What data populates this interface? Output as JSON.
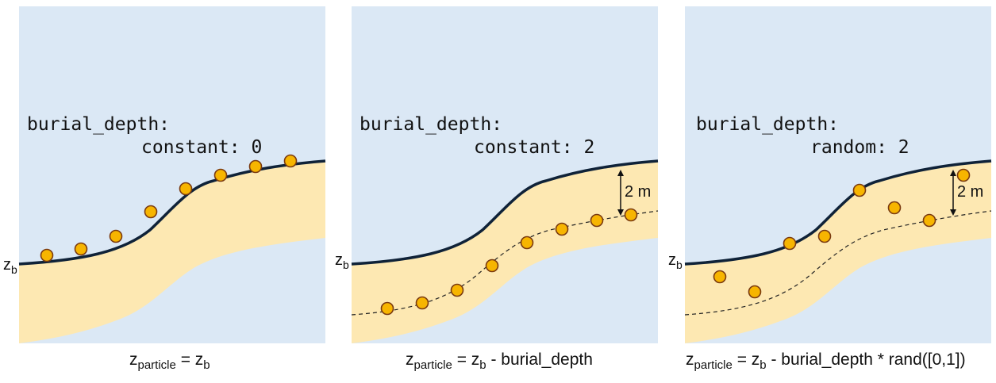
{
  "colors": {
    "water": "#dbe8f5",
    "sediment": "#fde8b2",
    "bed_line": "#0f2238",
    "particle_fill": "#f7b500",
    "particle_stroke": "#7a3a10",
    "dashed": "#222222"
  },
  "panels": [
    {
      "id": "constant-0",
      "config_line1": "burial_depth:",
      "config_line2": "constant: 0",
      "zb_main": "z",
      "zb_sub": "b",
      "show_depth_marker": false,
      "show_dashed_line": false,
      "caption": {
        "lhs_main": "z",
        "lhs_sub": "particle",
        "mid": " = ",
        "rhs_main": "z",
        "rhs_sub": "b",
        "rest": ""
      }
    },
    {
      "id": "constant-2",
      "config_line1": "burial_depth:",
      "config_line2": "constant: 2",
      "zb_main": "z",
      "zb_sub": "b",
      "show_depth_marker": true,
      "depth_label": "2 m",
      "show_dashed_line": true,
      "caption": {
        "lhs_main": "z",
        "lhs_sub": "particle",
        "mid": " = ",
        "rhs_main": "z",
        "rhs_sub": "b",
        "rest": " - burial_depth"
      }
    },
    {
      "id": "random-2",
      "config_line1": "burial_depth:",
      "config_line2": "random: 2",
      "zb_main": "z",
      "zb_sub": "b",
      "show_depth_marker": true,
      "depth_label": "2 m",
      "show_dashed_line": true,
      "caption": {
        "lhs_main": "z",
        "lhs_sub": "particle",
        "mid": " = ",
        "rhs_main": "z",
        "rhs_sub": "b",
        "rest": " - burial_depth * rand([0,1])"
      }
    }
  ]
}
